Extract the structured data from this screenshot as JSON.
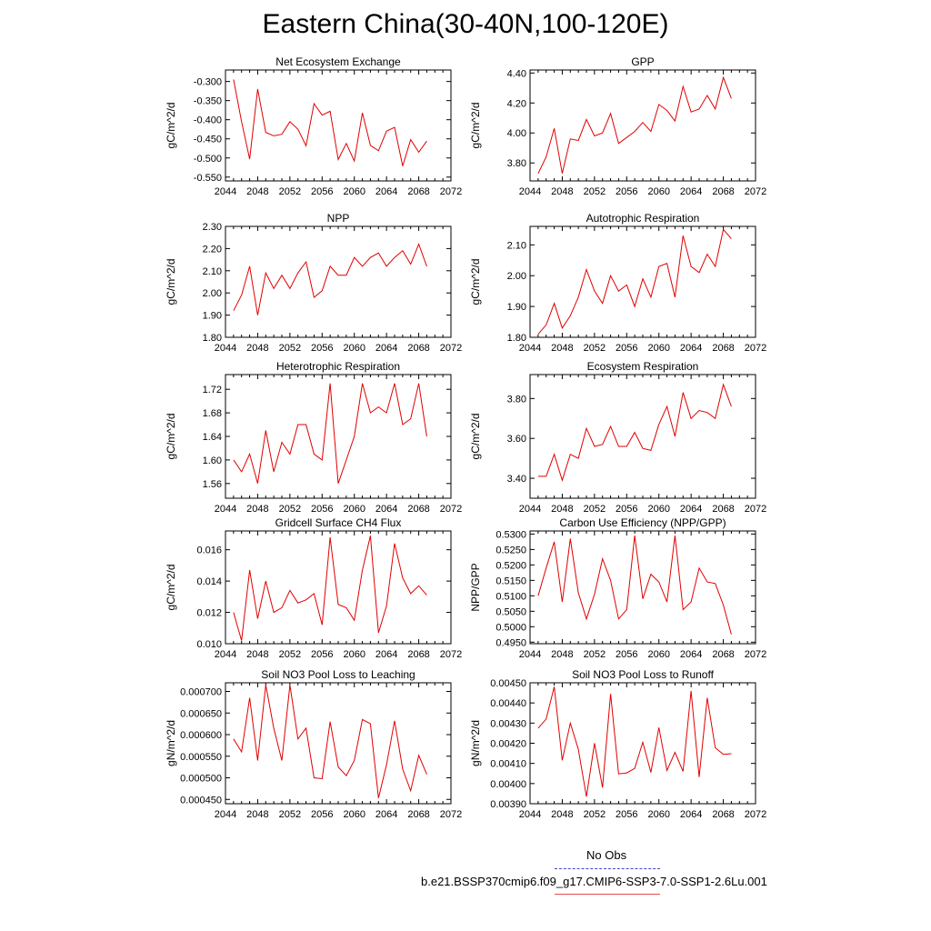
{
  "title": "Eastern China(30-40N,100-120E)",
  "legend": {
    "obs_label": "No Obs",
    "model_label": "b.e21.BSSP370cmip6.f09_g17.CMIP6-SSP3-7.0-SSP1-2.6Lu.001",
    "obs_color": "#4444cc",
    "model_color": "#e00000"
  },
  "chart_data": [
    {
      "type": "line",
      "title": "Net Ecosystem Exchange",
      "ylabel": "gC/m^2/d",
      "xlim": [
        2044,
        2072
      ],
      "ylim": [
        -0.56,
        -0.27
      ],
      "xticks": [
        2044,
        2048,
        2052,
        2056,
        2060,
        2064,
        2068,
        2072
      ],
      "xtick_labels": [
        "2044",
        "2048",
        "2052",
        "2056",
        "2060",
        "2064",
        "2068",
        "2072"
      ],
      "yticks": [
        -0.55,
        -0.5,
        -0.45,
        -0.4,
        -0.35,
        -0.3
      ],
      "ytick_labels": [
        "-0.550",
        "-0.500",
        "-0.450",
        "-0.400",
        "-0.350",
        "-0.300"
      ],
      "x": [
        2045,
        2046,
        2047,
        2048,
        2049,
        2050,
        2051,
        2052,
        2053,
        2054,
        2055,
        2056,
        2057,
        2058,
        2059,
        2060,
        2061,
        2062,
        2063,
        2064,
        2065,
        2066,
        2067,
        2068,
        2069
      ],
      "series": [
        {
          "values": [
            -0.295,
            -0.405,
            -0.503,
            -0.32,
            -0.433,
            -0.442,
            -0.438,
            -0.405,
            -0.425,
            -0.468,
            -0.358,
            -0.388,
            -0.378,
            -0.504,
            -0.462,
            -0.508,
            -0.382,
            -0.467,
            -0.481,
            -0.43,
            -0.42,
            -0.521,
            -0.452,
            -0.485,
            -0.456
          ]
        }
      ]
    },
    {
      "type": "line",
      "title": "GPP",
      "ylabel": "gC/m^2/d",
      "xlim": [
        2044,
        2072
      ],
      "ylim": [
        3.68,
        4.42
      ],
      "xticks": [
        2044,
        2048,
        2052,
        2056,
        2060,
        2064,
        2068,
        2072
      ],
      "xtick_labels": [
        "2044",
        "2048",
        "2052",
        "2056",
        "2060",
        "2064",
        "2068",
        "2072"
      ],
      "yticks": [
        3.8,
        4.0,
        4.2,
        4.4
      ],
      "ytick_labels": [
        "3.80",
        "4.00",
        "4.20",
        "4.40"
      ],
      "x": [
        2045,
        2046,
        2047,
        2048,
        2049,
        2050,
        2051,
        2052,
        2053,
        2054,
        2055,
        2056,
        2057,
        2058,
        2059,
        2060,
        2061,
        2062,
        2063,
        2064,
        2065,
        2066,
        2067,
        2068,
        2069
      ],
      "series": [
        {
          "values": [
            3.73,
            3.84,
            4.03,
            3.73,
            3.96,
            3.95,
            4.09,
            3.98,
            4.0,
            4.13,
            3.93,
            3.97,
            4.01,
            4.07,
            4.01,
            4.19,
            4.15,
            4.08,
            4.31,
            4.14,
            4.16,
            4.25,
            4.16,
            4.37,
            4.23
          ]
        }
      ]
    },
    {
      "type": "line",
      "title": "NPP",
      "ylabel": "gC/m^2/d",
      "xlim": [
        2044,
        2072
      ],
      "ylim": [
        1.8,
        2.3
      ],
      "xticks": [
        2044,
        2048,
        2052,
        2056,
        2060,
        2064,
        2068,
        2072
      ],
      "xtick_labels": [
        "2044",
        "2048",
        "2052",
        "2056",
        "2060",
        "2064",
        "2068",
        "2072"
      ],
      "yticks": [
        1.8,
        1.9,
        2.0,
        2.1,
        2.2,
        2.3
      ],
      "ytick_labels": [
        "1.80",
        "1.90",
        "2.00",
        "2.10",
        "2.20",
        "2.30"
      ],
      "x": [
        2045,
        2046,
        2047,
        2048,
        2049,
        2050,
        2051,
        2052,
        2053,
        2054,
        2055,
        2056,
        2057,
        2058,
        2059,
        2060,
        2061,
        2062,
        2063,
        2064,
        2065,
        2066,
        2067,
        2068,
        2069
      ],
      "series": [
        {
          "values": [
            1.92,
            1.99,
            2.12,
            1.9,
            2.09,
            2.02,
            2.08,
            2.02,
            2.09,
            2.14,
            1.98,
            2.01,
            2.12,
            2.08,
            2.08,
            2.16,
            2.12,
            2.16,
            2.18,
            2.12,
            2.16,
            2.19,
            2.13,
            2.22,
            2.12
          ]
        }
      ]
    },
    {
      "type": "line",
      "title": "Autotrophic Respiration",
      "ylabel": "gC/m^2/d",
      "xlim": [
        2044,
        2072
      ],
      "ylim": [
        1.8,
        2.16
      ],
      "xticks": [
        2044,
        2048,
        2052,
        2056,
        2060,
        2064,
        2068,
        2072
      ],
      "xtick_labels": [
        "2044",
        "2048",
        "2052",
        "2056",
        "2060",
        "2064",
        "2068",
        "2072"
      ],
      "yticks": [
        1.8,
        1.9,
        2.0,
        2.1
      ],
      "ytick_labels": [
        "1.80",
        "1.90",
        "2.00",
        "2.10"
      ],
      "x": [
        2045,
        2046,
        2047,
        2048,
        2049,
        2050,
        2051,
        2052,
        2053,
        2054,
        2055,
        2056,
        2057,
        2058,
        2059,
        2060,
        2061,
        2062,
        2063,
        2064,
        2065,
        2066,
        2067,
        2068,
        2069
      ],
      "series": [
        {
          "values": [
            1.81,
            1.84,
            1.91,
            1.83,
            1.87,
            1.93,
            2.02,
            1.95,
            1.91,
            2.0,
            1.95,
            1.97,
            1.9,
            1.99,
            1.93,
            2.03,
            2.04,
            1.93,
            2.13,
            2.03,
            2.01,
            2.07,
            2.03,
            2.15,
            2.12
          ]
        }
      ]
    },
    {
      "type": "line",
      "title": "Heterotrophic Respiration",
      "ylabel": "gC/m^2/d",
      "xlim": [
        2044,
        2072
      ],
      "ylim": [
        1.535,
        1.745
      ],
      "xticks": [
        2044,
        2048,
        2052,
        2056,
        2060,
        2064,
        2068,
        2072
      ],
      "xtick_labels": [
        "2044",
        "2048",
        "2052",
        "2056",
        "2060",
        "2064",
        "2068",
        "2072"
      ],
      "yticks": [
        1.56,
        1.6,
        1.64,
        1.68,
        1.72
      ],
      "ytick_labels": [
        "1.56",
        "1.60",
        "1.64",
        "1.68",
        "1.72"
      ],
      "x": [
        2045,
        2046,
        2047,
        2048,
        2049,
        2050,
        2051,
        2052,
        2053,
        2054,
        2055,
        2056,
        2057,
        2058,
        2059,
        2060,
        2061,
        2062,
        2063,
        2064,
        2065,
        2066,
        2067,
        2068,
        2069
      ],
      "series": [
        {
          "values": [
            1.6,
            1.58,
            1.61,
            1.56,
            1.65,
            1.58,
            1.63,
            1.61,
            1.66,
            1.66,
            1.61,
            1.6,
            1.73,
            1.56,
            1.6,
            1.64,
            1.73,
            1.68,
            1.69,
            1.68,
            1.73,
            1.66,
            1.67,
            1.73,
            1.64
          ]
        }
      ]
    },
    {
      "type": "line",
      "title": "Ecosystem Respiration",
      "ylabel": "gC/m^2/d",
      "xlim": [
        2044,
        2072
      ],
      "ylim": [
        3.3,
        3.92
      ],
      "xticks": [
        2044,
        2048,
        2052,
        2056,
        2060,
        2064,
        2068,
        2072
      ],
      "xtick_labels": [
        "2044",
        "2048",
        "2052",
        "2056",
        "2060",
        "2064",
        "2068",
        "2072"
      ],
      "yticks": [
        3.4,
        3.6,
        3.8
      ],
      "ytick_labels": [
        "3.40",
        "3.60",
        "3.80"
      ],
      "x": [
        2045,
        2046,
        2047,
        2048,
        2049,
        2050,
        2051,
        2052,
        2053,
        2054,
        2055,
        2056,
        2057,
        2058,
        2059,
        2060,
        2061,
        2062,
        2063,
        2064,
        2065,
        2066,
        2067,
        2068,
        2069
      ],
      "series": [
        {
          "values": [
            3.41,
            3.41,
            3.52,
            3.39,
            3.52,
            3.5,
            3.65,
            3.56,
            3.57,
            3.66,
            3.56,
            3.56,
            3.63,
            3.55,
            3.54,
            3.67,
            3.76,
            3.61,
            3.83,
            3.7,
            3.74,
            3.73,
            3.7,
            3.87,
            3.76
          ]
        }
      ]
    },
    {
      "type": "line",
      "title": "Gridcell Surface CH4 Flux",
      "ylabel": "gC/m^2/d",
      "xlim": [
        2044,
        2072
      ],
      "ylim": [
        0.01,
        0.0172
      ],
      "xticks": [
        2044,
        2048,
        2052,
        2056,
        2060,
        2064,
        2068,
        2072
      ],
      "xtick_labels": [
        "2044",
        "2048",
        "2052",
        "2056",
        "2060",
        "2064",
        "2068",
        "2072"
      ],
      "yticks": [
        0.01,
        0.012,
        0.014,
        0.016
      ],
      "ytick_labels": [
        "0.010",
        "0.012",
        "0.014",
        "0.016"
      ],
      "x": [
        2045,
        2046,
        2047,
        2048,
        2049,
        2050,
        2051,
        2052,
        2053,
        2054,
        2055,
        2056,
        2057,
        2058,
        2059,
        2060,
        2061,
        2062,
        2063,
        2064,
        2065,
        2066,
        2067,
        2068,
        2069
      ],
      "series": [
        {
          "values": [
            0.012,
            0.0102,
            0.0147,
            0.0116,
            0.014,
            0.012,
            0.0123,
            0.0134,
            0.0126,
            0.0128,
            0.0132,
            0.0112,
            0.0168,
            0.0125,
            0.0123,
            0.0115,
            0.0147,
            0.0169,
            0.0107,
            0.0124,
            0.0164,
            0.0142,
            0.0132,
            0.0137,
            0.0131
          ]
        }
      ]
    },
    {
      "type": "line",
      "title": "Carbon Use Efficiency (NPP/GPP)",
      "ylabel": "NPP/GPP",
      "xlim": [
        2044,
        2072
      ],
      "ylim": [
        0.4945,
        0.531
      ],
      "xticks": [
        2044,
        2048,
        2052,
        2056,
        2060,
        2064,
        2068,
        2072
      ],
      "xtick_labels": [
        "2044",
        "2048",
        "2052",
        "2056",
        "2060",
        "2064",
        "2068",
        "2072"
      ],
      "yticks": [
        0.495,
        0.5,
        0.505,
        0.51,
        0.515,
        0.52,
        0.525,
        0.53
      ],
      "ytick_labels": [
        "0.4950",
        "0.5000",
        "0.5050",
        "0.5100",
        "0.5150",
        "0.5200",
        "0.5250",
        "0.5300"
      ],
      "x": [
        2045,
        2046,
        2047,
        2048,
        2049,
        2050,
        2051,
        2052,
        2053,
        2054,
        2055,
        2056,
        2057,
        2058,
        2059,
        2060,
        2061,
        2062,
        2063,
        2064,
        2065,
        2066,
        2067,
        2068,
        2069
      ],
      "series": [
        {
          "values": [
            0.51,
            0.519,
            0.5275,
            0.508,
            0.5285,
            0.511,
            0.5025,
            0.5105,
            0.522,
            0.515,
            0.5025,
            0.5055,
            0.5295,
            0.509,
            0.517,
            0.5145,
            0.508,
            0.5295,
            0.5055,
            0.508,
            0.519,
            0.5145,
            0.514,
            0.507,
            0.4975
          ]
        }
      ]
    },
    {
      "type": "line",
      "title": "Soil NO3 Pool Loss to Leaching",
      "ylabel": "gN/m^2/d",
      "xlim": [
        2044,
        2072
      ],
      "ylim": [
        0.00044,
        0.00072
      ],
      "xticks": [
        2044,
        2048,
        2052,
        2056,
        2060,
        2064,
        2068,
        2072
      ],
      "xtick_labels": [
        "2044",
        "2048",
        "2052",
        "2056",
        "2060",
        "2064",
        "2068",
        "2072"
      ],
      "yticks": [
        0.00045,
        0.0005,
        0.00055,
        0.0006,
        0.00065,
        0.0007
      ],
      "ytick_labels": [
        "0.000450",
        "0.000500",
        "0.000550",
        "0.000600",
        "0.000650",
        "0.000700"
      ],
      "x": [
        2045,
        2046,
        2047,
        2048,
        2049,
        2050,
        2051,
        2052,
        2053,
        2054,
        2055,
        2056,
        2057,
        2058,
        2059,
        2060,
        2061,
        2062,
        2063,
        2064,
        2065,
        2066,
        2067,
        2068,
        2069
      ],
      "series": [
        {
          "values": [
            0.00059,
            0.00056,
            0.000685,
            0.00054,
            0.000715,
            0.000615,
            0.00054,
            0.000715,
            0.00059,
            0.000615,
            0.0005,
            0.000498,
            0.00063,
            0.000525,
            0.000505,
            0.00054,
            0.000635,
            0.000625,
            0.000453,
            0.00053,
            0.000632,
            0.00052,
            0.00047,
            0.000552,
            0.000508
          ]
        }
      ]
    },
    {
      "type": "line",
      "title": "Soil NO3 Pool Loss to Runoff",
      "ylabel": "gN/m^2/d",
      "xlim": [
        2044,
        2072
      ],
      "ylim": [
        0.0039,
        0.0045
      ],
      "xticks": [
        2044,
        2048,
        2052,
        2056,
        2060,
        2064,
        2068,
        2072
      ],
      "xtick_labels": [
        "2044",
        "2048",
        "2052",
        "2056",
        "2060",
        "2064",
        "2068",
        "2072"
      ],
      "yticks": [
        0.0039,
        0.004,
        0.0041,
        0.0042,
        0.0043,
        0.0044,
        0.0045
      ],
      "ytick_labels": [
        "0.00390",
        "0.00400",
        "0.00410",
        "0.00420",
        "0.00430",
        "0.00440",
        "0.00450"
      ],
      "x": [
        2045,
        2046,
        2047,
        2048,
        2049,
        2050,
        2051,
        2052,
        2053,
        2054,
        2055,
        2056,
        2057,
        2058,
        2059,
        2060,
        2061,
        2062,
        2063,
        2064,
        2065,
        2066,
        2067,
        2068,
        2069
      ],
      "series": [
        {
          "values": [
            0.004275,
            0.00432,
            0.00448,
            0.004115,
            0.0043,
            0.00417,
            0.003935,
            0.0042,
            0.00398,
            0.004445,
            0.004048,
            0.004053,
            0.004075,
            0.004205,
            0.004055,
            0.004278,
            0.004065,
            0.004155,
            0.00406,
            0.00446,
            0.004032,
            0.004425,
            0.004178,
            0.004145,
            0.004148
          ]
        }
      ]
    }
  ]
}
